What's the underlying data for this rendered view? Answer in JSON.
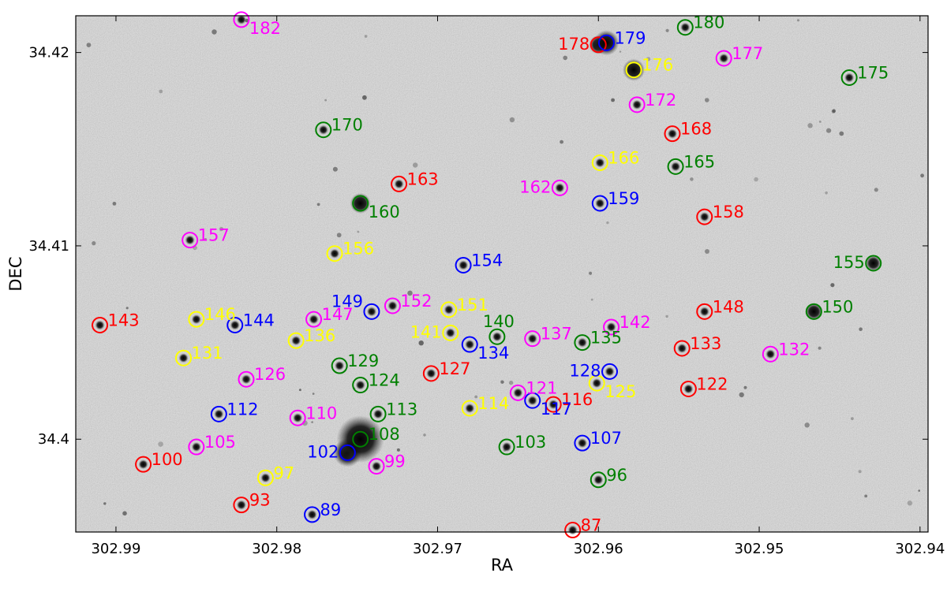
{
  "chart_data": {
    "type": "scatter",
    "title": "",
    "xlabel": "RA",
    "ylabel": "DEC",
    "xlim": [
      302.9925,
      302.9395
    ],
    "ylim": [
      34.3952,
      34.4219
    ],
    "x_ticks": [
      302.99,
      302.98,
      302.97,
      302.96,
      302.95,
      302.94
    ],
    "x_tick_labels": [
      "302.99",
      "302.98",
      "302.97",
      "302.96",
      "302.95",
      "302.94"
    ],
    "y_ticks": [
      34.4,
      34.41,
      34.42
    ],
    "y_tick_labels": [
      "34.4",
      "34.41",
      "34.42"
    ],
    "grid": false,
    "background": "grayscale sky image",
    "colors": {
      "red": "#ff0000",
      "blue": "#0000ff",
      "green": "#008000",
      "magenta": "#ff00ff",
      "yellow": "#ffff00"
    },
    "points": [
      {
        "id": "87",
        "ra": 302.9616,
        "dec": 34.3953,
        "color": "red",
        "label_side": "right"
      },
      {
        "id": "89",
        "ra": 302.9778,
        "dec": 34.3961,
        "color": "blue",
        "label_side": "right"
      },
      {
        "id": "93",
        "ra": 302.9822,
        "dec": 34.3966,
        "color": "red",
        "label_side": "right"
      },
      {
        "id": "96",
        "ra": 302.96,
        "dec": 34.3979,
        "color": "green",
        "label_side": "right"
      },
      {
        "id": "97",
        "ra": 302.9807,
        "dec": 34.398,
        "color": "yellow",
        "label_side": "right"
      },
      {
        "id": "99",
        "ra": 302.9738,
        "dec": 34.3986,
        "color": "magenta",
        "label_side": "right"
      },
      {
        "id": "100",
        "ra": 302.9883,
        "dec": 34.3987,
        "color": "red",
        "label_side": "right"
      },
      {
        "id": "102",
        "ra": 302.9756,
        "dec": 34.3993,
        "color": "blue",
        "label_side": "left"
      },
      {
        "id": "103",
        "ra": 302.9657,
        "dec": 34.3996,
        "color": "green",
        "label_side": "right"
      },
      {
        "id": "105",
        "ra": 302.985,
        "dec": 34.3996,
        "color": "magenta",
        "label_side": "right"
      },
      {
        "id": "107",
        "ra": 302.961,
        "dec": 34.3998,
        "color": "blue",
        "label_side": "right"
      },
      {
        "id": "108",
        "ra": 302.9748,
        "dec": 34.4,
        "color": "green",
        "label_side": "right"
      },
      {
        "id": "110",
        "ra": 302.9787,
        "dec": 34.4011,
        "color": "magenta",
        "label_side": "right"
      },
      {
        "id": "112",
        "ra": 302.9836,
        "dec": 34.4013,
        "color": "blue",
        "label_side": "right"
      },
      {
        "id": "113",
        "ra": 302.9737,
        "dec": 34.4013,
        "color": "green",
        "label_side": "right"
      },
      {
        "id": "114",
        "ra": 302.968,
        "dec": 34.4016,
        "color": "yellow",
        "label_side": "right"
      },
      {
        "id": "116",
        "ra": 302.9628,
        "dec": 34.4018,
        "color": "red",
        "label_side": "right"
      },
      {
        "id": "117",
        "ra": 302.9641,
        "dec": 34.402,
        "color": "blue",
        "label_side": "right-below"
      },
      {
        "id": "121",
        "ra": 302.965,
        "dec": 34.4024,
        "color": "magenta",
        "label_side": "right"
      },
      {
        "id": "122",
        "ra": 302.9544,
        "dec": 34.4026,
        "color": "red",
        "label_side": "right"
      },
      {
        "id": "124",
        "ra": 302.9748,
        "dec": 34.4028,
        "color": "green",
        "label_side": "right"
      },
      {
        "id": "125",
        "ra": 302.9601,
        "dec": 34.4029,
        "color": "yellow",
        "label_side": "right-below"
      },
      {
        "id": "126",
        "ra": 302.9819,
        "dec": 34.4031,
        "color": "magenta",
        "label_side": "right"
      },
      {
        "id": "127",
        "ra": 302.9704,
        "dec": 34.4034,
        "color": "red",
        "label_side": "right"
      },
      {
        "id": "128",
        "ra": 302.9593,
        "dec": 34.4035,
        "color": "blue",
        "label_side": "left"
      },
      {
        "id": "129",
        "ra": 302.9761,
        "dec": 34.4038,
        "color": "green",
        "label_side": "right"
      },
      {
        "id": "131",
        "ra": 302.9858,
        "dec": 34.4042,
        "color": "yellow",
        "label_side": "right"
      },
      {
        "id": "132",
        "ra": 302.9493,
        "dec": 34.4044,
        "color": "magenta",
        "label_side": "right"
      },
      {
        "id": "133",
        "ra": 302.9548,
        "dec": 34.4047,
        "color": "red",
        "label_side": "right"
      },
      {
        "id": "134",
        "ra": 302.968,
        "dec": 34.4049,
        "color": "blue",
        "label_side": "right-below"
      },
      {
        "id": "135",
        "ra": 302.961,
        "dec": 34.405,
        "color": "green",
        "label_side": "right"
      },
      {
        "id": "136",
        "ra": 302.9788,
        "dec": 34.4051,
        "color": "yellow",
        "label_side": "right"
      },
      {
        "id": "137",
        "ra": 302.9641,
        "dec": 34.4052,
        "color": "magenta",
        "label_side": "right"
      },
      {
        "id": "140",
        "ra": 302.9663,
        "dec": 34.4053,
        "color": "green",
        "label_side": "above"
      },
      {
        "id": "141",
        "ra": 302.9692,
        "dec": 34.4055,
        "color": "yellow",
        "label_side": "left"
      },
      {
        "id": "142",
        "ra": 302.9592,
        "dec": 34.4058,
        "color": "magenta",
        "label_side": "right"
      },
      {
        "id": "143",
        "ra": 302.991,
        "dec": 34.4059,
        "color": "red",
        "label_side": "right"
      },
      {
        "id": "144",
        "ra": 302.9826,
        "dec": 34.4059,
        "color": "blue",
        "label_side": "right"
      },
      {
        "id": "146",
        "ra": 302.985,
        "dec": 34.4062,
        "color": "yellow",
        "label_side": "right"
      },
      {
        "id": "147",
        "ra": 302.9777,
        "dec": 34.4062,
        "color": "magenta",
        "label_side": "right"
      },
      {
        "id": "148",
        "ra": 302.9534,
        "dec": 34.4066,
        "color": "red",
        "label_side": "right"
      },
      {
        "id": "149",
        "ra": 302.9741,
        "dec": 34.4066,
        "color": "blue",
        "label_side": "left-above"
      },
      {
        "id": "150",
        "ra": 302.9466,
        "dec": 34.4066,
        "color": "green",
        "label_side": "right"
      },
      {
        "id": "151",
        "ra": 302.9693,
        "dec": 34.4067,
        "color": "yellow",
        "label_side": "right"
      },
      {
        "id": "152",
        "ra": 302.9728,
        "dec": 34.4069,
        "color": "magenta",
        "label_side": "right"
      },
      {
        "id": "154",
        "ra": 302.9684,
        "dec": 34.409,
        "color": "blue",
        "label_side": "right"
      },
      {
        "id": "155",
        "ra": 302.9429,
        "dec": 34.4091,
        "color": "green",
        "label_side": "left"
      },
      {
        "id": "156",
        "ra": 302.9764,
        "dec": 34.4096,
        "color": "yellow",
        "label_side": "right"
      },
      {
        "id": "157",
        "ra": 302.9854,
        "dec": 34.4103,
        "color": "magenta",
        "label_side": "right"
      },
      {
        "id": "158",
        "ra": 302.9534,
        "dec": 34.4115,
        "color": "red",
        "label_side": "right"
      },
      {
        "id": "159",
        "ra": 302.9599,
        "dec": 34.4122,
        "color": "blue",
        "label_side": "right"
      },
      {
        "id": "160",
        "ra": 302.9748,
        "dec": 34.4122,
        "color": "green",
        "label_side": "right-below"
      },
      {
        "id": "162",
        "ra": 302.9624,
        "dec": 34.413,
        "color": "magenta",
        "label_side": "left"
      },
      {
        "id": "163",
        "ra": 302.9724,
        "dec": 34.4132,
        "color": "red",
        "label_side": "right"
      },
      {
        "id": "165",
        "ra": 302.9552,
        "dec": 34.4141,
        "color": "green",
        "label_side": "right"
      },
      {
        "id": "166",
        "ra": 302.9599,
        "dec": 34.4143,
        "color": "yellow",
        "label_side": "right"
      },
      {
        "id": "168",
        "ra": 302.9554,
        "dec": 34.4158,
        "color": "red",
        "label_side": "right"
      },
      {
        "id": "170",
        "ra": 302.9771,
        "dec": 34.416,
        "color": "green",
        "label_side": "right"
      },
      {
        "id": "172",
        "ra": 302.9576,
        "dec": 34.4173,
        "color": "magenta",
        "label_side": "right"
      },
      {
        "id": "175",
        "ra": 302.9444,
        "dec": 34.4187,
        "color": "green",
        "label_side": "right"
      },
      {
        "id": "176",
        "ra": 302.9578,
        "dec": 34.4191,
        "color": "yellow",
        "label_side": "right"
      },
      {
        "id": "177",
        "ra": 302.9522,
        "dec": 34.4197,
        "color": "magenta",
        "label_side": "right"
      },
      {
        "id": "178",
        "ra": 302.96,
        "dec": 34.4204,
        "color": "red",
        "label_side": "left"
      },
      {
        "id": "179",
        "ra": 302.9595,
        "dec": 34.4205,
        "color": "blue",
        "label_side": "right"
      },
      {
        "id": "180",
        "ra": 302.9546,
        "dec": 34.4213,
        "color": "green",
        "label_side": "right"
      },
      {
        "id": "182",
        "ra": 302.9822,
        "dec": 34.4217,
        "color": "magenta",
        "label_side": "right-below"
      }
    ]
  }
}
